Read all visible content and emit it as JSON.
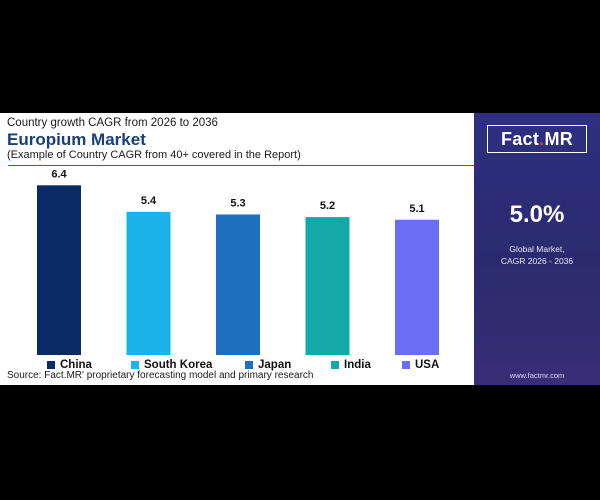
{
  "header": {
    "subtitle": "Country growth CAGR from 2026 to 2036",
    "title": "Europium Market",
    "note": "(Example of Country CAGR from 40+ covered in the Report)"
  },
  "source": "Source: Fact.MR' proprietary forecasting model and primary research",
  "sidebar": {
    "logo_main": "Fact",
    "logo_dot": ".",
    "logo_suffix": "MR",
    "value": "5.0%",
    "desc_line1": "Global Market,",
    "desc_line2": "CAGR 2026 - 2036",
    "website": "www.factmr.com"
  },
  "colors": {
    "China": "#0b2b66",
    "South Korea": "#1ab4ea",
    "Japan": "#1f6fbf",
    "India": "#15a8a8",
    "USA": "#6a6ff2",
    "accent": "#2a63b8",
    "panel": "#2e2f80"
  },
  "chart_data": {
    "type": "bar",
    "categories": [
      "China",
      "South Korea",
      "Japan",
      "India",
      "USA"
    ],
    "values": [
      6.4,
      5.4,
      5.3,
      5.2,
      5.1
    ],
    "data_labels": [
      "6.4",
      "5.4",
      "5.3",
      "5.2",
      "5.1"
    ],
    "legend": [
      "China",
      "South Korea",
      "Japan",
      "India",
      "USA"
    ],
    "legend_position": "bottom",
    "ylim": [
      0,
      6.6
    ],
    "grid": false
  }
}
